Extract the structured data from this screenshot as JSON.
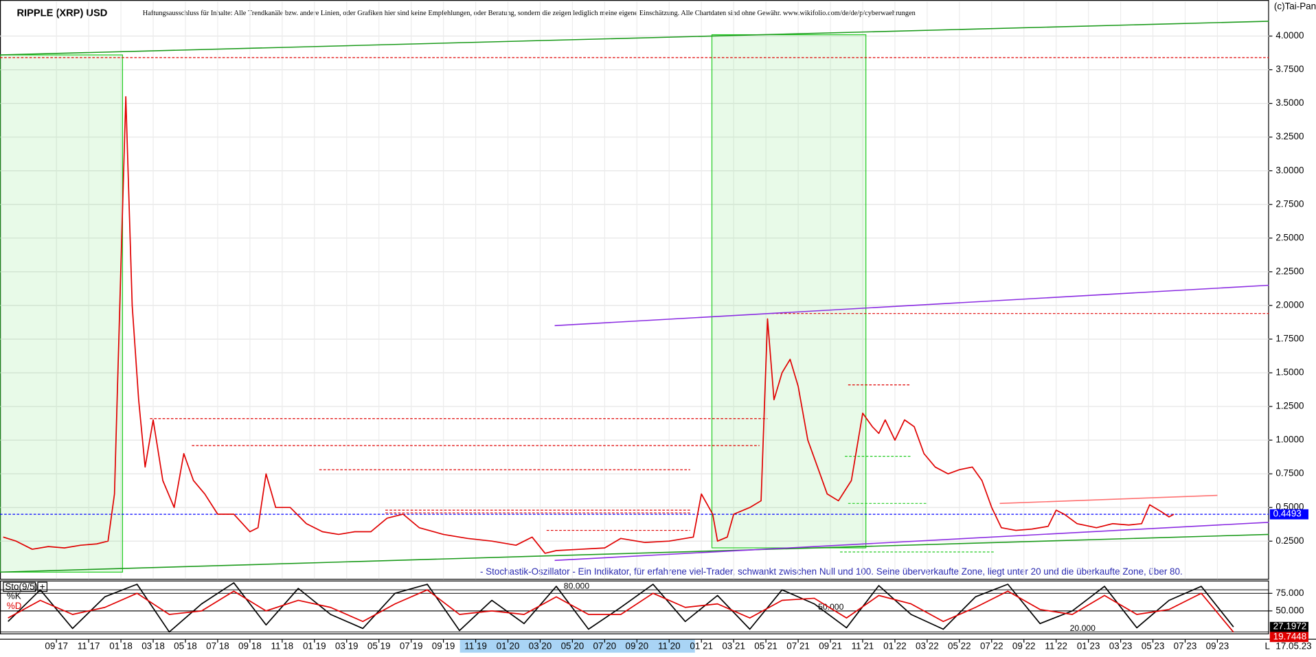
{
  "chart_data": [
    {
      "type": "line",
      "title": "RIPPLE (XRP) USD",
      "subtitle": "Haftungsausschluss für Inhalte: Alle Trendkanäle bzw. andere Linien, oder Grafiken hier sind keine Empfehlungen, oder Beratung, sondern die zeigen lediglich meine eigene Einschätzung. Alle Chartdaten sind ohne Gewähr. www.wikifolio.com/de/de/p/cyberwaehrungen",
      "copyright": "(c)Tai-Pan",
      "date_label": "17.05.23",
      "axis_marker": "L",
      "color": "#e00000",
      "last_color": "#0000ff",
      "x": [
        4.7,
        5.5,
        6.5,
        7.5,
        8.5,
        9.5,
        10.5,
        11.2,
        11.6,
        12.0,
        12.3,
        12.7,
        13.1,
        13.5,
        14.0,
        14.6,
        15.3,
        15.9,
        16.5,
        17.2,
        18,
        19,
        20,
        20.5,
        21.0,
        21.6,
        22.5,
        23.5,
        24.5,
        25.5,
        26.5,
        27.5,
        28.5,
        29.5,
        30.5,
        32,
        33.5,
        35,
        36.5,
        37.5,
        38.3,
        39,
        40.5,
        42,
        43,
        44.5,
        46,
        47.5,
        48,
        48.7,
        49,
        49.6,
        50,
        51,
        51.7,
        52.1,
        52.5,
        53,
        53.5,
        54,
        54.6,
        55.2,
        55.8,
        56.5,
        57.3,
        58,
        58.6,
        59,
        59.4,
        60,
        60.6,
        61.2,
        61.8,
        62.5,
        63.3,
        64,
        64.8,
        65.4,
        66,
        66.6,
        67.5,
        68.5,
        69.5,
        70,
        70.5,
        71.3,
        72.5,
        73.5,
        74.5,
        75.3,
        75.8,
        76.5,
        77,
        77.3
      ],
      "values": [
        0.28,
        0.25,
        0.19,
        0.21,
        0.2,
        0.22,
        0.23,
        0.25,
        0.6,
        2.3,
        3.55,
        2.0,
        1.3,
        0.8,
        1.15,
        0.7,
        0.5,
        0.9,
        0.7,
        0.6,
        0.45,
        0.45,
        0.32,
        0.35,
        0.75,
        0.5,
        0.5,
        0.38,
        0.32,
        0.3,
        0.32,
        0.32,
        0.42,
        0.45,
        0.35,
        0.3,
        0.27,
        0.25,
        0.22,
        0.28,
        0.16,
        0.18,
        0.19,
        0.2,
        0.27,
        0.24,
        0.25,
        0.28,
        0.6,
        0.45,
        0.25,
        0.28,
        0.45,
        0.5,
        0.55,
        1.9,
        1.3,
        1.5,
        1.6,
        1.4,
        1.0,
        0.8,
        0.6,
        0.55,
        0.7,
        1.2,
        1.1,
        1.05,
        1.15,
        1.0,
        1.15,
        1.1,
        0.9,
        0.8,
        0.75,
        0.78,
        0.8,
        0.7,
        0.5,
        0.35,
        0.33,
        0.34,
        0.36,
        0.48,
        0.45,
        0.38,
        0.35,
        0.38,
        0.37,
        0.38,
        0.52,
        0.47,
        0.43,
        0.4493
      ],
      "xlim": [
        4.5,
        83.2
      ],
      "ylim": [
        -0.03,
        4.255
      ],
      "grid": true,
      "xticks": [
        {
          "value": 8,
          "label": "09 17"
        },
        {
          "value": 10,
          "label": "11 17"
        },
        {
          "value": 12,
          "label": "01 18"
        },
        {
          "value": 14,
          "label": "03 18"
        },
        {
          "value": 16,
          "label": "05 18"
        },
        {
          "value": 18,
          "label": "07 18"
        },
        {
          "value": 20,
          "label": "09 18"
        },
        {
          "value": 22,
          "label": "11 18"
        },
        {
          "value": 24,
          "label": "01 19"
        },
        {
          "value": 26,
          "label": "03 19"
        },
        {
          "value": 28,
          "label": "05 19"
        },
        {
          "value": 30,
          "label": "07 19"
        },
        {
          "value": 32,
          "label": "09 19"
        },
        {
          "value": 34,
          "label": "11 19"
        },
        {
          "value": 36,
          "label": "01 20"
        },
        {
          "value": 38,
          "label": "03 20"
        },
        {
          "value": 40,
          "label": "05 20"
        },
        {
          "value": 42,
          "label": "07 20"
        },
        {
          "value": 44,
          "label": "09 20"
        },
        {
          "value": 46,
          "label": "11 20"
        },
        {
          "value": 48,
          "label": "01 21"
        },
        {
          "value": 50,
          "label": "03 21"
        },
        {
          "value": 52,
          "label": "05 21"
        },
        {
          "value": 54,
          "label": "07 21"
        },
        {
          "value": 56,
          "label": "09 21"
        },
        {
          "value": 58,
          "label": "11 21"
        },
        {
          "value": 60,
          "label": "01 22"
        },
        {
          "value": 62,
          "label": "03 22"
        },
        {
          "value": 64,
          "label": "05 22"
        },
        {
          "value": 66,
          "label": "07 22"
        },
        {
          "value": 68,
          "label": "09 22"
        },
        {
          "value": 70,
          "label": "11 22"
        },
        {
          "value": 72,
          "label": "01 23"
        },
        {
          "value": 74,
          "label": "03 23"
        },
        {
          "value": 76,
          "label": "05 23"
        },
        {
          "value": 78,
          "label": "07 23"
        },
        {
          "value": 80,
          "label": "09 23"
        }
      ],
      "yticks": [
        {
          "value": 0.25,
          "label": "0.2500"
        },
        {
          "value": 0.5,
          "label": "0.5000"
        },
        {
          "value": 0.75,
          "label": "0.7500"
        },
        {
          "value": 1.0,
          "label": "1.0000"
        },
        {
          "value": 1.25,
          "label": "1.2500"
        },
        {
          "value": 1.5,
          "label": "1.5000"
        },
        {
          "value": 1.75,
          "label": "1.7500"
        },
        {
          "value": 2.0,
          "label": "2.0000"
        },
        {
          "value": 2.25,
          "label": "2.2500"
        },
        {
          "value": 2.5,
          "label": "2.5000"
        },
        {
          "value": 2.75,
          "label": "2.7500"
        },
        {
          "value": 3.0,
          "label": "3.0000"
        },
        {
          "value": 3.25,
          "label": "3.2500"
        },
        {
          "value": 3.5,
          "label": "3.5000"
        },
        {
          "value": 3.75,
          "label": "3.7500"
        },
        {
          "value": 4.0,
          "label": "4.0000"
        }
      ],
      "zones": [
        {
          "x": [
            4.5,
            12.1
          ],
          "y": [
            0.02,
            3.86
          ],
          "color": "#22cc22"
        },
        {
          "x": [
            48.65,
            58.2
          ],
          "y": [
            0.2,
            4.01
          ],
          "color": "#22cc22"
        }
      ],
      "levels": [
        {
          "value": 3.84,
          "x": [
            4.5,
            83.2
          ],
          "color": "#e00000"
        },
        {
          "value": 1.94,
          "x": [
            52.1,
            83.2
          ],
          "color": "#e00000"
        },
        {
          "value": 1.16,
          "x": [
            13.8,
            52.1
          ],
          "color": "#e00000"
        },
        {
          "value": 0.96,
          "x": [
            16.4,
            51.6
          ],
          "color": "#e00000"
        },
        {
          "value": 0.78,
          "x": [
            24.3,
            47.3
          ],
          "color": "#e00000"
        },
        {
          "value": 0.48,
          "x": [
            28.4,
            47.3
          ],
          "color": "#e00000"
        },
        {
          "value": 0.46,
          "x": [
            28.4,
            47.3
          ],
          "color": "#e00000"
        },
        {
          "value": 0.33,
          "x": [
            38.4,
            47.3
          ],
          "color": "#e00000"
        },
        {
          "value": 1.41,
          "x": [
            57.1,
            61
          ],
          "color": "#e00000"
        },
        {
          "value": 0.88,
          "x": [
            56.9,
            61
          ],
          "color": "#22cc22"
        },
        {
          "value": 0.53,
          "x": [
            57.1,
            62
          ],
          "color": "#22cc22"
        },
        {
          "value": 0.17,
          "x": [
            56.6,
            66.2
          ],
          "color": "#22cc22"
        },
        {
          "value": 0.4493,
          "x": [
            4.5,
            83.2
          ],
          "color": "#0000ff"
        }
      ],
      "trendlines": [
        {
          "x": [
            4.5,
            83.2
          ],
          "y": [
            3.86,
            4.11
          ],
          "color": "#1a9a1a"
        },
        {
          "x": [
            4.5,
            83.2
          ],
          "y": [
            0.02,
            0.3
          ],
          "color": "#1a9a1a"
        },
        {
          "x": [
            38.9,
            83.2
          ],
          "y": [
            1.85,
            2.15
          ],
          "color": "#8a2be2"
        },
        {
          "x": [
            38.9,
            83.2
          ],
          "y": [
            0.107,
            0.39
          ],
          "color": "#8a2be2"
        },
        {
          "x": [
            66.5,
            80
          ],
          "y": [
            0.53,
            0.59
          ],
          "color": "#ff7070"
        }
      ]
    },
    {
      "type": "line",
      "title": "Sto(9/5)",
      "annotation": "- Stochastik-Oszillator - Ein Indikator, für erfahrene viel-Trader, schwankt zwischen Null und 100. Seine überverkaufte Zone, liegt unter 20 und die überkaufte Zone, über 80.",
      "x": [
        5,
        7,
        9,
        11,
        13,
        15,
        17,
        19,
        21,
        23,
        25,
        27,
        29,
        31,
        33,
        35,
        37,
        39,
        41,
        43,
        45,
        47,
        49,
        51,
        53,
        55,
        57,
        59,
        61,
        63,
        65,
        67,
        69,
        71,
        73,
        75,
        77,
        79,
        81
      ],
      "series": [
        {
          "name": "%K",
          "color": "#000000",
          "values": [
            35,
            80,
            25,
            70,
            88,
            20,
            60,
            90,
            30,
            82,
            45,
            25,
            75,
            88,
            22,
            65,
            32,
            85,
            24,
            55,
            88,
            35,
            72,
            24,
            80,
            60,
            26,
            86,
            45,
            24,
            70,
            88,
            32,
            50,
            85,
            26,
            65,
            85,
            27.1972
          ]
        },
        {
          "name": "%D",
          "color": "#e00000",
          "values": [
            40,
            65,
            45,
            55,
            75,
            45,
            50,
            78,
            50,
            65,
            55,
            35,
            60,
            80,
            45,
            50,
            45,
            70,
            45,
            45,
            75,
            55,
            60,
            40,
            65,
            68,
            40,
            72,
            60,
            35,
            55,
            78,
            52,
            45,
            72,
            45,
            52,
            75,
            19.7448
          ]
        }
      ],
      "xlim": [
        4.5,
        83.2
      ],
      "ylim": [
        18,
        92
      ],
      "yticks": [
        {
          "value": 75,
          "label": "75.000"
        },
        {
          "value": 50,
          "label": "50.000"
        }
      ],
      "levels": [
        {
          "value": 80,
          "label": "80.000"
        },
        {
          "value": 50,
          "label": "50.000"
        },
        {
          "value": 20,
          "label": "20.000"
        }
      ]
    }
  ]
}
